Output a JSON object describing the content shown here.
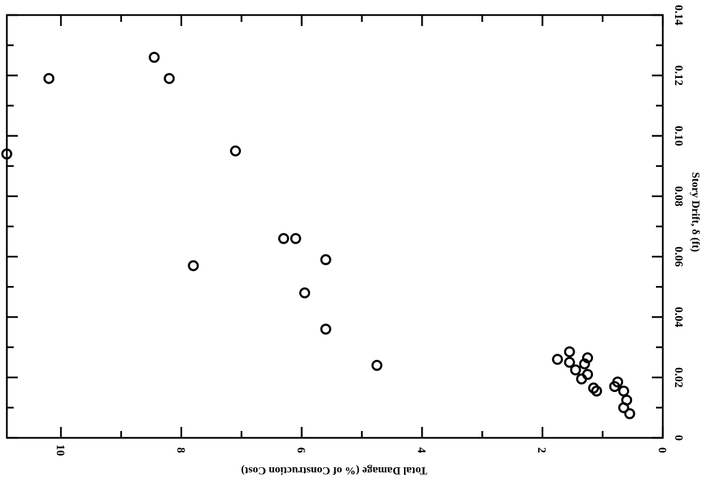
{
  "chart_data": {
    "type": "scatter",
    "title": "",
    "xlabel": "Total Damage (% of Construction Cost)",
    "ylabel": "Story Drift, δ (ft)",
    "x_ticks": [
      "0",
      "2",
      "4",
      "6",
      "8",
      "10"
    ],
    "y_ticks": [
      "0",
      "0.02",
      "0.04",
      "0.06",
      "0.08",
      "0.10",
      "0.12",
      "0.14"
    ],
    "xlim": [
      0,
      11
    ],
    "ylim": [
      0,
      0.14
    ],
    "x_reversed": true,
    "rotated": true,
    "grid": false,
    "series": [
      {
        "marker": "open-circle",
        "points": [
          {
            "x": 10.9,
            "y": 0.094
          },
          {
            "x": 10.2,
            "y": 0.119
          },
          {
            "x": 8.45,
            "y": 0.126
          },
          {
            "x": 8.2,
            "y": 0.119
          },
          {
            "x": 7.8,
            "y": 0.057
          },
          {
            "x": 7.1,
            "y": 0.095
          },
          {
            "x": 6.3,
            "y": 0.066
          },
          {
            "x": 6.1,
            "y": 0.066
          },
          {
            "x": 5.95,
            "y": 0.048
          },
          {
            "x": 5.6,
            "y": 0.059
          },
          {
            "x": 5.6,
            "y": 0.036
          },
          {
            "x": 4.75,
            "y": 0.024
          },
          {
            "x": 1.75,
            "y": 0.026
          },
          {
            "x": 1.55,
            "y": 0.0285
          },
          {
            "x": 1.55,
            "y": 0.025
          },
          {
            "x": 1.45,
            "y": 0.0225
          },
          {
            "x": 1.35,
            "y": 0.0195
          },
          {
            "x": 1.3,
            "y": 0.0245
          },
          {
            "x": 1.25,
            "y": 0.0265
          },
          {
            "x": 1.25,
            "y": 0.021
          },
          {
            "x": 1.15,
            "y": 0.0165
          },
          {
            "x": 1.1,
            "y": 0.0155
          },
          {
            "x": 0.8,
            "y": 0.017
          },
          {
            "x": 0.75,
            "y": 0.0185
          },
          {
            "x": 0.65,
            "y": 0.0155
          },
          {
            "x": 0.6,
            "y": 0.0125
          },
          {
            "x": 0.65,
            "y": 0.01
          },
          {
            "x": 0.55,
            "y": 0.008
          }
        ]
      }
    ]
  }
}
